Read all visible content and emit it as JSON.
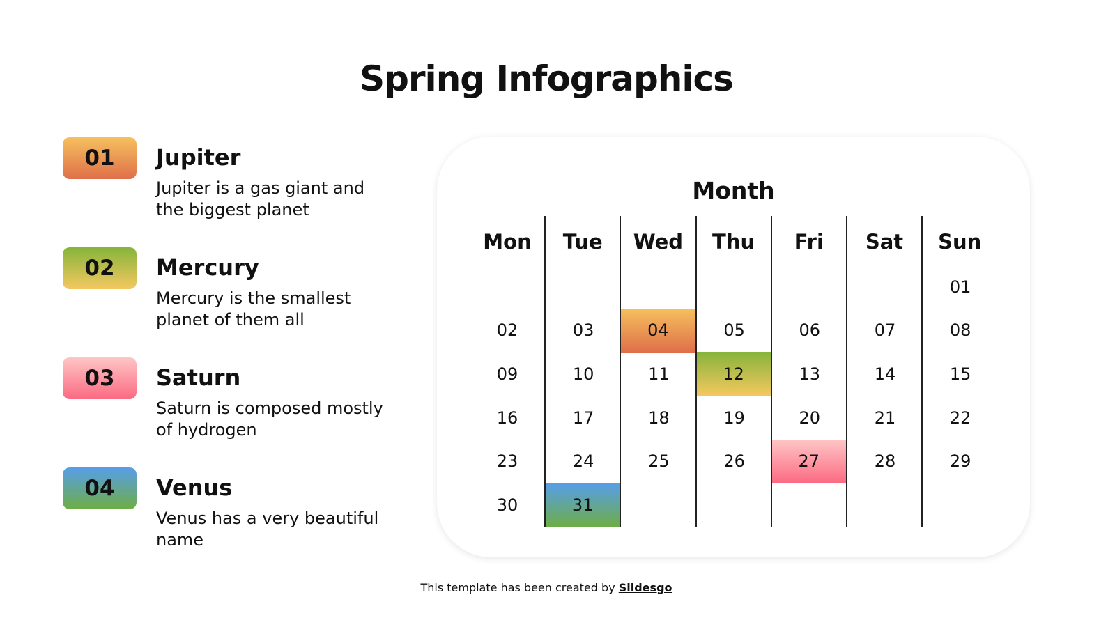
{
  "title": "Spring Infographics",
  "items": [
    {
      "num": "01",
      "title": "Jupiter",
      "desc": "Jupiter is a gas giant and the biggest planet"
    },
    {
      "num": "02",
      "title": "Mercury",
      "desc": "Mercury is the smallest planet of them all"
    },
    {
      "num": "03",
      "title": "Saturn",
      "desc": "Saturn is composed mostly of hydrogen"
    },
    {
      "num": "04",
      "title": "Venus",
      "desc": "Venus has a very beautiful name"
    }
  ],
  "calendar": {
    "title": "Month",
    "days": [
      "Mon",
      "Tue",
      "Wed",
      "Thu",
      "Fri",
      "Sat",
      "Sun"
    ],
    "weeks": [
      [
        "",
        "",
        "",
        "",
        "",
        "",
        "01"
      ],
      [
        "02",
        "03",
        "04",
        "05",
        "06",
        "07",
        "08"
      ],
      [
        "09",
        "10",
        "11",
        "12",
        "13",
        "14",
        "15"
      ],
      [
        "16",
        "17",
        "18",
        "19",
        "20",
        "21",
        "22"
      ],
      [
        "23",
        "24",
        "25",
        "26",
        "27",
        "28",
        "29"
      ],
      [
        "30",
        "31",
        "",
        "",
        "",
        "",
        ""
      ]
    ],
    "highlights": {
      "04": "g1",
      "12": "g2",
      "27": "g3",
      "31": "g4"
    }
  },
  "footer": {
    "text": "This template has been created by ",
    "brand": "Slidesgo"
  }
}
